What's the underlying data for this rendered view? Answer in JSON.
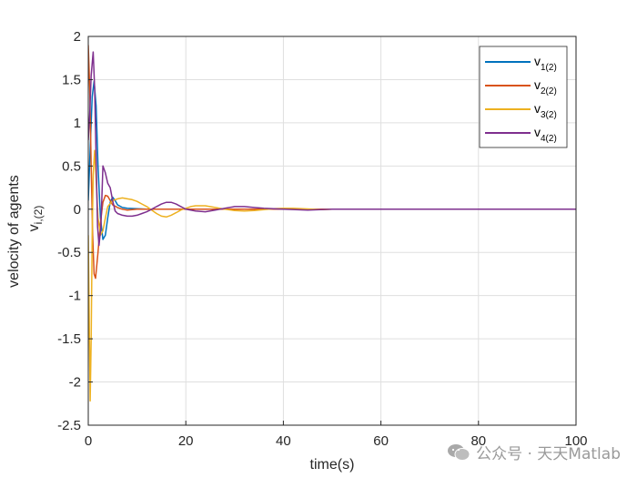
{
  "chart_data": {
    "type": "line",
    "xlabel": "time(s)",
    "ylabel": "velocity of agents",
    "ylabel_sub": {
      "base": "v",
      "sub": "i,(2)"
    },
    "xlim": [
      0,
      100
    ],
    "ylim": [
      -2.5,
      2
    ],
    "xticks": [
      0,
      20,
      40,
      60,
      80,
      100
    ],
    "yticks": [
      -2.5,
      -2,
      -1.5,
      -1,
      -0.5,
      0,
      0.5,
      1,
      1.5,
      2
    ],
    "xtick_labels": [
      "0",
      "20",
      "40",
      "60",
      "80",
      "100"
    ],
    "ytick_labels": [
      "-2.5",
      "-2",
      "-1.5",
      "-1",
      "-0.5",
      "0",
      "0.5",
      "1",
      "1.5",
      "2"
    ],
    "grid": true,
    "legend_position": "top-right",
    "series": [
      {
        "name": "v",
        "sub": "1(2)",
        "color": "#0072BD",
        "x": [
          0,
          0.4,
          0.8,
          1.2,
          1.6,
          2.0,
          2.5,
          3.0,
          3.5,
          4.0,
          4.5,
          5.0,
          5.5,
          6.0,
          7.0,
          8.0,
          10,
          12,
          15,
          20,
          30,
          100
        ],
        "y": [
          0.1,
          0.7,
          1.3,
          1.48,
          1.2,
          0.5,
          -0.1,
          -0.35,
          -0.3,
          -0.1,
          0.08,
          0.14,
          0.1,
          0.05,
          0.02,
          0.01,
          0.005,
          0.0,
          0.0,
          0.0,
          0.0,
          0.0
        ]
      },
      {
        "name": "v",
        "sub": "2(2)",
        "color": "#D95319",
        "x": [
          0,
          0.3,
          0.6,
          0.9,
          1.2,
          1.5,
          2.0,
          2.5,
          3.0,
          3.5,
          4.0,
          4.5,
          5.0,
          6.0,
          7.0,
          8.0,
          10,
          15,
          20,
          30,
          45,
          60,
          100
        ],
        "y": [
          1.9,
          1.4,
          0.5,
          -0.3,
          -0.75,
          -0.8,
          -0.5,
          -0.15,
          0.08,
          0.16,
          0.15,
          0.1,
          0.05,
          0.02,
          0.0,
          -0.01,
          0.0,
          0.0,
          0.0,
          0.0,
          0.0,
          0.0,
          0.0
        ]
      },
      {
        "name": "v",
        "sub": "3(2)",
        "color": "#EDB120",
        "x": [
          0,
          0.2,
          0.4,
          0.6,
          0.8,
          1.0,
          1.3,
          1.6,
          2.0,
          2.5,
          3.0,
          3.5,
          4.0,
          5.0,
          6.0,
          7.0,
          8.0,
          9.0,
          10,
          11,
          12,
          13,
          14,
          15,
          16,
          17,
          18,
          19,
          20,
          21,
          22,
          24,
          26,
          28,
          30,
          32,
          34,
          36,
          38,
          40,
          42,
          44,
          46,
          48,
          50,
          55,
          60,
          70,
          100
        ],
        "y": [
          -0.3,
          -1.3,
          -2.22,
          -1.5,
          -0.3,
          0.4,
          0.68,
          0.35,
          -0.1,
          -0.3,
          -0.25,
          -0.1,
          0.03,
          0.1,
          0.12,
          0.13,
          0.12,
          0.11,
          0.09,
          0.06,
          0.03,
          -0.01,
          -0.05,
          -0.08,
          -0.09,
          -0.07,
          -0.04,
          -0.01,
          0.01,
          0.03,
          0.04,
          0.04,
          0.02,
          0.0,
          -0.015,
          -0.02,
          -0.015,
          -0.005,
          0.005,
          0.01,
          0.01,
          0.005,
          0.0,
          -0.005,
          0.0,
          0.0,
          0.0,
          0.0,
          0.0
        ]
      },
      {
        "name": "v",
        "sub": "4(2)",
        "color": "#7E2F8E",
        "x": [
          0,
          0.3,
          0.6,
          1.0,
          1.3,
          1.6,
          1.9,
          2.2,
          2.6,
          3.0,
          3.5,
          4.0,
          4.5,
          5.0,
          5.5,
          6.0,
          7.0,
          8.0,
          9.0,
          10,
          11,
          12,
          13,
          14,
          15,
          16,
          17,
          18,
          19,
          20,
          22,
          24,
          26,
          28,
          30,
          32,
          34,
          36,
          40,
          45,
          50,
          60,
          70,
          100
        ],
        "y": [
          0.8,
          1.1,
          1.55,
          1.82,
          1.4,
          0.6,
          -0.2,
          -0.42,
          -0.2,
          0.5,
          0.42,
          0.3,
          0.25,
          0.1,
          -0.02,
          -0.05,
          -0.07,
          -0.08,
          -0.08,
          -0.07,
          -0.05,
          -0.03,
          0.0,
          0.03,
          0.06,
          0.08,
          0.08,
          0.06,
          0.03,
          0.0,
          -0.02,
          -0.03,
          -0.01,
          0.01,
          0.03,
          0.03,
          0.02,
          0.01,
          0.0,
          -0.01,
          0.0,
          0.0,
          0.0,
          0.0
        ]
      }
    ]
  },
  "watermark": {
    "text": "公众号 · 天天Matlab",
    "icon": "wechat-icon"
  }
}
